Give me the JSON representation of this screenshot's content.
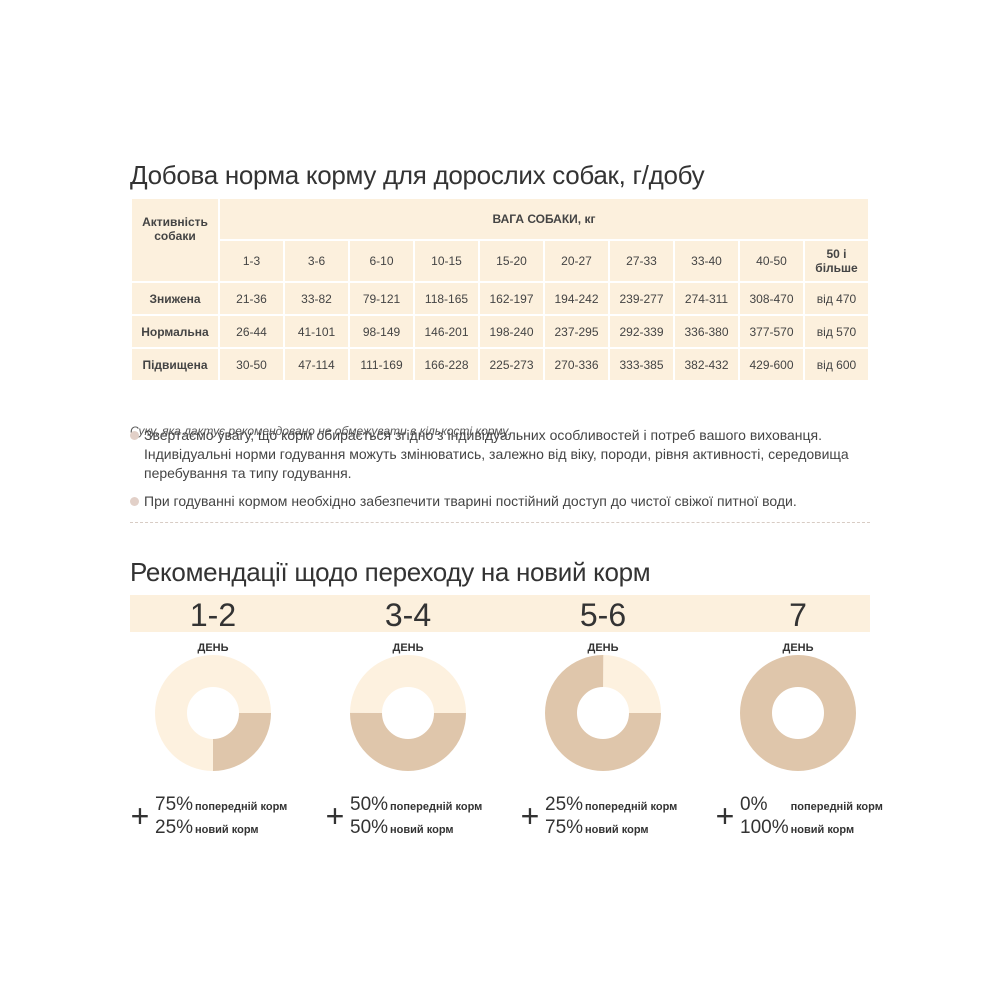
{
  "table_section": {
    "title": "Добова норма корму для дорослих собак, г/добу",
    "activity_header": "Активність собаки",
    "weight_header": "ВАГА СОБАКИ, кг",
    "weight_columns": [
      "1-3",
      "3-6",
      "6-10",
      "10-15",
      "15-20",
      "20-27",
      "27-33",
      "33-40",
      "40-50",
      "50 і більше"
    ],
    "rows": [
      [
        "Знижена",
        "21-36",
        "33-82",
        "79-121",
        "118-165",
        "162-197",
        "194-242",
        "239-277",
        "274-311",
        "308-470",
        "від 470"
      ],
      [
        "Нормальна",
        "26-44",
        "41-101",
        "98-149",
        "146-201",
        "198-240",
        "237-295",
        "292-339",
        "336-380",
        "377-570",
        "від 570"
      ],
      [
        "Підвищена",
        "30-50",
        "47-114",
        "111-169",
        "166-228",
        "225-273",
        "270-336",
        "333-385",
        "382-432",
        "429-600",
        "від 600"
      ]
    ],
    "note": "Суку, яка лактує рекомендовано не обмежувати в кількості корму.",
    "bullets": [
      "Звертаємо увагу, що корм обирається згідно з індивідуальних особливостей і потреб вашого вихованця. Індивідуальні норми годування можуть змінюватись, залежно від віку, породи, рівня активності, середовища перебування та типу годування.",
      "При годуванні кормом необхідно забезпечити тварині постійний доступ до чистої свіжої питної води."
    ]
  },
  "transition_section": {
    "title": "Рекомендації щодо переходу на новий корм",
    "plus": "+",
    "stages": [
      {
        "days": "1-2",
        "day_label": "ДЕНЬ",
        "previous": {
          "value": 75,
          "label": "75%",
          "text": "попередній корм"
        },
        "new": {
          "value": 25,
          "label": "25%",
          "text": "новий корм"
        }
      },
      {
        "days": "3-4",
        "day_label": "ДЕНЬ",
        "previous": {
          "value": 50,
          "label": "50%",
          "text": "попередній корм"
        },
        "new": {
          "value": 50,
          "label": "50%",
          "text": "новий корм"
        }
      },
      {
        "days": "5-6",
        "day_label": "ДЕНЬ",
        "previous": {
          "value": 25,
          "label": "25%",
          "text": "попередній корм"
        },
        "new": {
          "value": 75,
          "label": "75%",
          "text": "новий корм"
        }
      },
      {
        "days": "7",
        "day_label": "ДЕНЬ",
        "previous": {
          "value": 0,
          "label": "0%",
          "text": "попередній корм"
        },
        "new": {
          "value": 100,
          "label": "100%",
          "text": "новий корм"
        }
      }
    ]
  }
}
